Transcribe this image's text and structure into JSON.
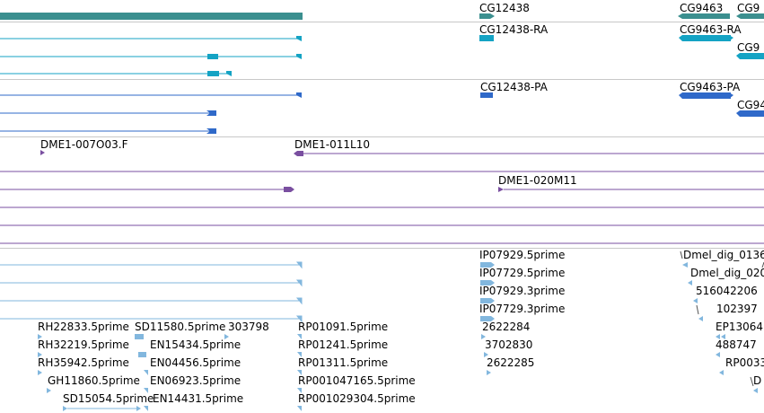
{
  "colors": {
    "gene": "#3b8f8f",
    "mrna": "#14a3c4",
    "cds": "#2f69c9",
    "clone": "#7a4fa0",
    "est": "#82b7de",
    "separator": "#c8c8c8"
  },
  "tracks": [
    {
      "name": "gene-track",
      "labels": [
        {
          "id": "cg12438",
          "text": "CG12438"
        },
        {
          "id": "cg9463",
          "text": "CG9463"
        },
        {
          "id": "cg9-partial",
          "text": "CG9"
        }
      ]
    },
    {
      "name": "transcript-track",
      "labels": [
        {
          "id": "cg12438-ra",
          "text": "CG12438-RA"
        },
        {
          "id": "cg9463-ra",
          "text": "CG9463-RA"
        },
        {
          "id": "cg9-partial-ra",
          "text": "CG9"
        }
      ]
    },
    {
      "name": "protein-track",
      "labels": [
        {
          "id": "cg12438-pa",
          "text": "CG12438-PA"
        },
        {
          "id": "cg9463-pa",
          "text": "CG9463-PA"
        },
        {
          "id": "cg94-partial-pa",
          "text": "CG94"
        }
      ]
    },
    {
      "name": "clone-track",
      "labels": [
        {
          "id": "dme1-007o03",
          "text": "DME1-007O03.F"
        },
        {
          "id": "dme1-011l10",
          "text": "DME1-011L10"
        },
        {
          "id": "dme1-020m11",
          "text": "DME1-020M11"
        }
      ]
    },
    {
      "name": "est-track",
      "labels": [
        {
          "id": "ip07929-5",
          "text": "IP07929.5prime"
        },
        {
          "id": "ip07729-5",
          "text": "IP07729.5prime"
        },
        {
          "id": "ip07929-3",
          "text": "IP07929.3prime"
        },
        {
          "id": "ip07729-3",
          "text": "IP07729.3prime"
        },
        {
          "id": "dmel-dig-0136",
          "text": "Dmel_dig_0136"
        },
        {
          "id": "dmel-dig-020",
          "text": "Dmel_dig_020"
        },
        {
          "id": "n5160422061",
          "text": "516042206"
        },
        {
          "id": "n102397",
          "text": "102397"
        },
        {
          "id": "ep13064",
          "text": "EP13064"
        },
        {
          "id": "n488747",
          "text": "488747"
        },
        {
          "id": "rp0033",
          "text": "RP0033"
        },
        {
          "id": "d-partial",
          "text": "D"
        },
        {
          "id": "rh22833",
          "text": "RH22833.5prime"
        },
        {
          "id": "sd11580",
          "text": "SD11580.5prime"
        },
        {
          "id": "n303798",
          "text": "303798"
        },
        {
          "id": "rp01091",
          "text": "RP01091.5prime"
        },
        {
          "id": "n2622284",
          "text": "2622284"
        },
        {
          "id": "rh32219",
          "text": "RH32219.5prime"
        },
        {
          "id": "en15434",
          "text": "EN15434.5prime"
        },
        {
          "id": "rp01241",
          "text": "RP01241.5prime"
        },
        {
          "id": "n3702830",
          "text": "3702830"
        },
        {
          "id": "rh35942",
          "text": "RH35942.5prime"
        },
        {
          "id": "en04456",
          "text": "EN04456.5prime"
        },
        {
          "id": "rp01311",
          "text": "RP01311.5prime"
        },
        {
          "id": "n2622285",
          "text": "2622285"
        },
        {
          "id": "gh11860",
          "text": "GH11860.5prime"
        },
        {
          "id": "en06923",
          "text": "EN06923.5prime"
        },
        {
          "id": "rp001047165",
          "text": "RP001047165.5prime"
        },
        {
          "id": "sd15054",
          "text": "SD15054.5prime"
        },
        {
          "id": "en14431",
          "text": "EN14431.5prime"
        },
        {
          "id": "rp001029304",
          "text": "RP001029304.5prime"
        }
      ]
    }
  ]
}
